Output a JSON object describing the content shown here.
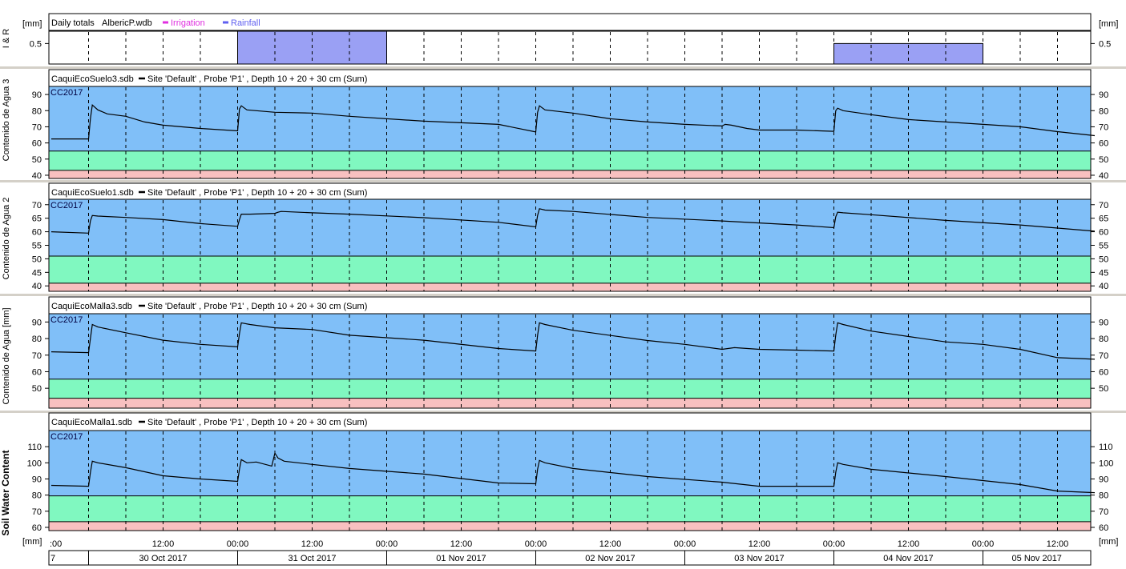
{
  "app": {
    "window": "Daily totals chart"
  },
  "time_axis": {
    "unit_label": "[mm]",
    "hour_labels": [
      "12:00",
      "00:00"
    ],
    "first_partial_label": "7",
    "first_tick_label": ":00",
    "date_labels": [
      "30 Oct 2017",
      "31 Oct 2017",
      "01 Nov 2017",
      "02 Nov 2017",
      "03 Nov 2017",
      "04 Nov 2017",
      "05 Nov 2017"
    ]
  },
  "colors": {
    "full_band": "#80bff8",
    "optimal_band": "#80f8c0",
    "stress_band": "#f8c0c0",
    "rainfall": "#9aa0f4",
    "irrigation": "#e030e0",
    "trace": "#000000"
  },
  "chart_data": [
    {
      "type": "bar",
      "panel": "irrigation-rainfall",
      "title": "Daily totals",
      "file": "AlbericP.wdb",
      "ylabel": "I & R",
      "unit": "[mm]",
      "ylim": [
        0,
        0.8
      ],
      "yticks": [
        0.5
      ],
      "legend": [
        {
          "name": "Irrigation",
          "color": "#e030e0"
        },
        {
          "name": "Rainfall",
          "color": "#6060f0"
        }
      ],
      "series": [
        {
          "name": "Rainfall",
          "bars": [
            {
              "from": "2017-10-31 00:00",
              "to": "2017-11-01 00:00",
              "value": 0.8
            },
            {
              "from": "2017-11-04 00:00",
              "to": "2017-11-05 00:00",
              "value": 0.5
            }
          ]
        },
        {
          "name": "Irrigation",
          "bars": []
        }
      ]
    },
    {
      "type": "line",
      "panel": "soil-water-3",
      "file": "CaquiEcoSuelo3.sdb",
      "legend": "Site 'Default' , Probe 'P1' , Depth 10 + 20 + 30 cm (Sum)",
      "band_label": "CC2017",
      "ylabel": "Contenido de Agua 3",
      "ylim": [
        38,
        95
      ],
      "yticks": [
        40,
        50,
        60,
        70,
        80,
        90
      ],
      "bands": {
        "full": [
          55,
          95
        ],
        "optimal": [
          43,
          55
        ],
        "stress": [
          38,
          43
        ]
      },
      "x_hours": [
        0,
        6,
        6.3,
        6.6,
        7.5,
        9,
        12,
        15,
        18,
        24,
        30,
        30.3,
        30.6,
        31.5,
        36,
        42,
        48,
        60,
        72,
        78,
        78.3,
        78.6,
        79.5,
        84,
        90,
        96,
        102,
        108,
        108.5,
        109.5,
        112,
        114,
        120,
        126,
        126.3,
        126.6,
        127.5,
        132,
        138,
        144,
        150,
        156,
        162,
        168
      ],
      "values": [
        62.5,
        62.5,
        75,
        83.5,
        80.5,
        78,
        76.5,
        73,
        71,
        69,
        67.5,
        81,
        83,
        80.5,
        79,
        78.5,
        76.5,
        73.5,
        71.5,
        66.8,
        79,
        83,
        80.5,
        78.5,
        75,
        73,
        71.5,
        70.5,
        71.5,
        71,
        69,
        68,
        68,
        67.2,
        80,
        81.5,
        80,
        77.5,
        74.5,
        73,
        71.5,
        70,
        67,
        64.5
      ]
    },
    {
      "type": "line",
      "panel": "soil-water-2",
      "file": "CaquiEcoSuelo1.sdb",
      "legend": "Site 'Default' , Probe 'P1' , Depth 10 + 20 + 30 cm (Sum)",
      "band_label": "CC2017",
      "ylabel": "Contenido de Agua 2",
      "ylim": [
        38,
        72
      ],
      "yticks": [
        40,
        45,
        50,
        55,
        60,
        65,
        70
      ],
      "bands": {
        "full": [
          51,
          72
        ],
        "optimal": [
          41,
          51
        ],
        "stress": [
          38,
          41
        ]
      },
      "x_hours": [
        0,
        6,
        6.3,
        6.6,
        7.5,
        12,
        18,
        24,
        30,
        30.3,
        30.6,
        32,
        36,
        36.5,
        37,
        42,
        48,
        60,
        72,
        78,
        78.3,
        78.6,
        79.5,
        84,
        96,
        108,
        120,
        126,
        126.3,
        126.6,
        127.5,
        132,
        144,
        156,
        168
      ],
      "values": [
        60,
        59.5,
        64,
        66,
        65.8,
        65.3,
        64.5,
        63,
        62,
        64.5,
        66.5,
        66.5,
        66.8,
        67.2,
        67.5,
        67,
        66.5,
        65.2,
        63.5,
        61.8,
        66,
        68.5,
        68,
        67.5,
        65.3,
        64,
        62.5,
        61.5,
        65.5,
        67.2,
        67,
        66.3,
        64.2,
        62.5,
        60.2
      ]
    },
    {
      "type": "line",
      "panel": "soil-water-mm",
      "file": "CaquiEcoMalla3.sdb",
      "legend": "Site 'Default' , Probe 'P1' , Depth 10 + 20 + 30 cm (Sum)",
      "band_label": "CC2017",
      "ylabel": "Contenido de Agua [mm]",
      "ylim": [
        38,
        95
      ],
      "yticks": [
        50,
        60,
        70,
        80,
        90
      ],
      "bands": {
        "full": [
          55.5,
          95
        ],
        "optimal": [
          44,
          55.5
        ],
        "stress": [
          38,
          44
        ]
      },
      "x_hours": [
        0,
        6,
        6.3,
        6.6,
        7.5,
        12,
        18,
        24,
        30,
        30.3,
        30.6,
        32,
        36,
        42,
        48,
        60,
        72,
        78,
        78.3,
        78.6,
        79.5,
        84,
        96,
        102,
        108,
        110,
        114,
        120,
        126,
        126.3,
        126.6,
        127.5,
        132,
        144,
        150,
        156,
        162,
        168
      ],
      "values": [
        72,
        71.5,
        80,
        88.5,
        87,
        83.5,
        79,
        76.5,
        75,
        83,
        89.5,
        88.5,
        86.5,
        85.5,
        82,
        79,
        74,
        72.5,
        82,
        89.5,
        88.5,
        85,
        78.8,
        76.5,
        73.5,
        74.5,
        73.5,
        73,
        72.5,
        82,
        89.5,
        88.5,
        84.5,
        78,
        76.5,
        73.5,
        68.5,
        67.5
      ]
    },
    {
      "type": "line",
      "panel": "soil-water-content",
      "file": "CaquiEcoMalla1.sdb",
      "legend": "Site 'Default' , Probe 'P1' , Depth 10 + 20 + 30 cm (Sum)",
      "band_label": "CC2017",
      "ylabel": "Soil Water Content",
      "unit": "[mm]",
      "ylim": [
        58,
        120
      ],
      "yticks": [
        60,
        70,
        80,
        90,
        100,
        110
      ],
      "bands": {
        "full": [
          79.5,
          120
        ],
        "optimal": [
          63.5,
          79.5
        ],
        "stress": [
          58,
          63.5
        ]
      },
      "x_hours": [
        0,
        6,
        6.3,
        6.6,
        7.5,
        12,
        18,
        24,
        30,
        30.3,
        30.6,
        31.5,
        33,
        35.5,
        36,
        36.5,
        37.5,
        42,
        48,
        60,
        72,
        78,
        78.3,
        78.6,
        79.5,
        84,
        96,
        108,
        114,
        120,
        126,
        126.3,
        126.6,
        127.5,
        132,
        144,
        150,
        156,
        162,
        168
      ],
      "values": [
        86,
        85.5,
        94,
        101,
        100,
        97,
        92,
        90,
        88.5,
        96,
        102,
        100,
        100.5,
        98,
        106,
        103,
        101,
        99,
        96.5,
        93,
        87.5,
        87,
        96,
        101.5,
        100,
        96.5,
        91.5,
        88,
        85.5,
        85.5,
        85.5,
        94,
        100,
        99,
        96,
        91.5,
        89,
        86.5,
        82.5,
        81.5
      ]
    }
  ]
}
